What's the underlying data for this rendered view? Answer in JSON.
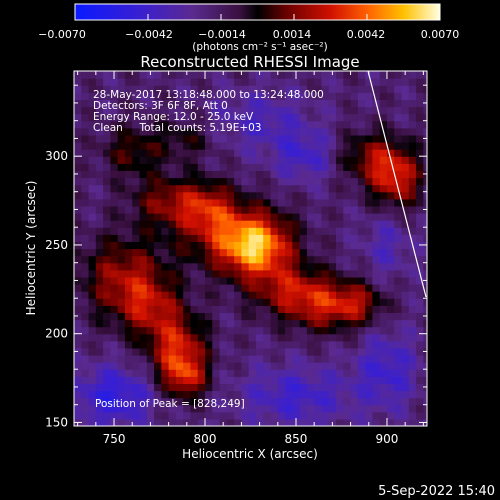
{
  "chart_data": {
    "type": "heatmap",
    "title": "Reconstructed RHESSI Image",
    "xlabel": "Heliocentric X (arcsec)",
    "ylabel": "Heliocentric Y (arcsec)",
    "xlim": [
      728,
      922
    ],
    "ylim": [
      148,
      348
    ],
    "x_ticks": [
      750,
      800,
      850,
      900
    ],
    "y_ticks": [
      150,
      200,
      250,
      300
    ],
    "x_tick_labels": [
      "750",
      "800",
      "850",
      "900"
    ],
    "y_tick_labels": [
      "150",
      "200",
      "250",
      "300"
    ],
    "colorbar": {
      "min": -0.007,
      "max": 0.007,
      "ticks": [
        -0.007,
        -0.0042,
        -0.0014,
        0.0014,
        0.0042,
        0.007
      ],
      "tick_labels": [
        "−0.0070",
        "−0.0042",
        "−0.0014",
        "0.0014",
        "0.0042",
        "0.0070"
      ],
      "unit_label": "(photons cm⁻² s⁻¹ asec⁻²)"
    },
    "info_lines": [
      "28-May-2017 13:18:48.000 to 13:24:48.000",
      "Detectors: 3F 6F 8F, Att 0",
      "Energy Range: 12.0 - 25.0 keV",
      "Clean     Total counts: 5.19E+03"
    ],
    "peak_label": "Position of Peak = [828,249]",
    "peak": [
      828,
      249
    ],
    "grid": false,
    "blobs": [
      {
        "x": 828,
        "y": 249,
        "sx": 14,
        "sy": 12,
        "amp": 0.0064
      },
      {
        "x": 810,
        "y": 258,
        "sx": 20,
        "sy": 14,
        "amp": 0.003
      },
      {
        "x": 802,
        "y": 272,
        "sx": 10,
        "sy": 10,
        "amp": 0.0026
      },
      {
        "x": 780,
        "y": 275,
        "sx": 14,
        "sy": 10,
        "amp": 0.003
      },
      {
        "x": 848,
        "y": 225,
        "sx": 16,
        "sy": 10,
        "amp": 0.0034
      },
      {
        "x": 868,
        "y": 215,
        "sx": 16,
        "sy": 10,
        "amp": 0.0034
      },
      {
        "x": 885,
        "y": 218,
        "sx": 10,
        "sy": 8,
        "amp": 0.0022
      },
      {
        "x": 755,
        "y": 232,
        "sx": 16,
        "sy": 16,
        "amp": 0.0036
      },
      {
        "x": 770,
        "y": 215,
        "sx": 12,
        "sy": 12,
        "amp": 0.003
      },
      {
        "x": 785,
        "y": 190,
        "sx": 11,
        "sy": 14,
        "amp": 0.0048
      },
      {
        "x": 790,
        "y": 175,
        "sx": 8,
        "sy": 8,
        "amp": 0.003
      },
      {
        "x": 905,
        "y": 288,
        "sx": 10,
        "sy": 12,
        "amp": 0.0046
      },
      {
        "x": 890,
        "y": 300,
        "sx": 12,
        "sy": 10,
        "amp": 0.0028
      },
      {
        "x": 760,
        "y": 303,
        "sx": 12,
        "sy": 10,
        "amp": 0.0024
      },
      {
        "x": 790,
        "y": 310,
        "sx": 12,
        "sy": 8,
        "amp": 0.0018
      },
      {
        "x": 855,
        "y": 300,
        "sx": 12,
        "sy": 10,
        "amp": -0.0022
      },
      {
        "x": 750,
        "y": 165,
        "sx": 16,
        "sy": 12,
        "amp": -0.0032
      },
      {
        "x": 850,
        "y": 165,
        "sx": 22,
        "sy": 12,
        "amp": -0.0024
      },
      {
        "x": 900,
        "y": 180,
        "sx": 12,
        "sy": 16,
        "amp": -0.0024
      },
      {
        "x": 900,
        "y": 250,
        "sx": 10,
        "sy": 14,
        "amp": -0.0016
      },
      {
        "x": 830,
        "y": 320,
        "sx": 20,
        "sy": 12,
        "amp": -0.0018
      }
    ],
    "background_level": -0.0018
  },
  "footer": {
    "timestamp": "5-Sep-2022 15:40"
  },
  "colors": {
    "background": "#000000",
    "text": "#ffffff"
  }
}
